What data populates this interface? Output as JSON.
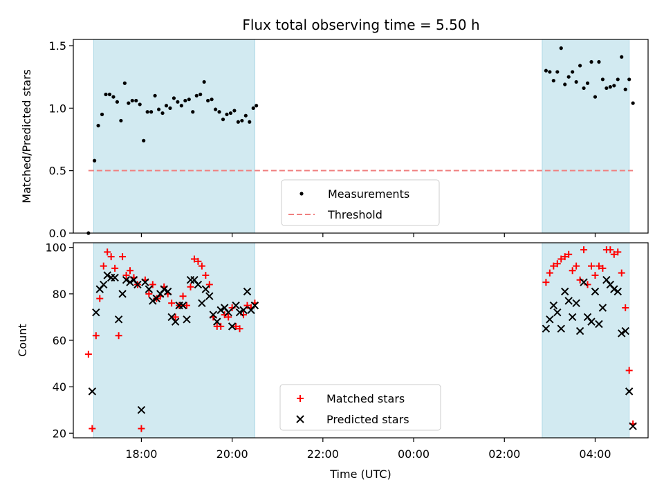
{
  "chart_data": [
    {
      "type": "scatter",
      "title": "Flux total observing time = 5.50 h",
      "ylabel": "Matched/Predicted stars",
      "xlabel": "",
      "ylim": [
        0,
        1.55
      ],
      "y_ticks": [
        0.0,
        0.5,
        1.0,
        1.5
      ],
      "y_tick_labels": [
        "0.0",
        "0.5",
        "1.0",
        "1.5"
      ],
      "shaded_intervals": [
        [
          "16:57",
          "20:30"
        ],
        [
          "02:50",
          "04:45"
        ]
      ],
      "threshold": 0.5,
      "legend": {
        "position": "lower center",
        "entries": [
          "Measurements",
          "Threshold"
        ]
      },
      "series": [
        {
          "name": "Measurements",
          "points": [
            [
              "16:50",
              0.0
            ],
            [
              "16:58",
              0.58
            ],
            [
              "17:03",
              0.86
            ],
            [
              "17:08",
              0.95
            ],
            [
              "17:13",
              1.11
            ],
            [
              "17:18",
              1.11
            ],
            [
              "17:23",
              1.09
            ],
            [
              "17:28",
              1.05
            ],
            [
              "17:33",
              0.9
            ],
            [
              "17:38",
              1.2
            ],
            [
              "17:43",
              1.04
            ],
            [
              "17:48",
              1.06
            ],
            [
              "17:53",
              1.06
            ],
            [
              "17:58",
              1.03
            ],
            [
              "18:03",
              0.74
            ],
            [
              "18:08",
              0.97
            ],
            [
              "18:13",
              0.97
            ],
            [
              "18:18",
              1.1
            ],
            [
              "18:23",
              0.99
            ],
            [
              "18:28",
              0.96
            ],
            [
              "18:33",
              1.02
            ],
            [
              "18:38",
              1.0
            ],
            [
              "18:43",
              1.08
            ],
            [
              "18:48",
              1.05
            ],
            [
              "18:53",
              1.02
            ],
            [
              "18:58",
              1.06
            ],
            [
              "19:03",
              1.07
            ],
            [
              "19:08",
              0.97
            ],
            [
              "19:13",
              1.1
            ],
            [
              "19:18",
              1.11
            ],
            [
              "19:23",
              1.21
            ],
            [
              "19:28",
              1.06
            ],
            [
              "19:33",
              1.07
            ],
            [
              "19:38",
              0.99
            ],
            [
              "19:43",
              0.97
            ],
            [
              "19:48",
              0.91
            ],
            [
              "19:53",
              0.95
            ],
            [
              "19:58",
              0.96
            ],
            [
              "20:03",
              0.98
            ],
            [
              "20:08",
              0.89
            ],
            [
              "20:13",
              0.9
            ],
            [
              "20:18",
              0.94
            ],
            [
              "20:23",
              0.89
            ],
            [
              "20:28",
              1.0
            ],
            [
              "20:32",
              1.02
            ],
            [
              "02:55",
              1.3
            ],
            [
              "03:00",
              1.29
            ],
            [
              "03:05",
              1.22
            ],
            [
              "03:10",
              1.29
            ],
            [
              "03:15",
              1.48
            ],
            [
              "03:20",
              1.19
            ],
            [
              "03:25",
              1.25
            ],
            [
              "03:30",
              1.29
            ],
            [
              "03:35",
              1.21
            ],
            [
              "03:40",
              1.34
            ],
            [
              "03:45",
              1.16
            ],
            [
              "03:50",
              1.2
            ],
            [
              "03:55",
              1.37
            ],
            [
              "04:00",
              1.09
            ],
            [
              "04:05",
              1.37
            ],
            [
              "04:10",
              1.23
            ],
            [
              "04:15",
              1.16
            ],
            [
              "04:20",
              1.17
            ],
            [
              "04:25",
              1.18
            ],
            [
              "04:30",
              1.23
            ],
            [
              "04:35",
              1.41
            ],
            [
              "04:40",
              1.15
            ],
            [
              "04:45",
              1.23
            ],
            [
              "04:50",
              1.04
            ]
          ]
        }
      ]
    },
    {
      "type": "scatter",
      "title": "",
      "ylabel": "Count",
      "xlabel": "Time (UTC)",
      "ylim": [
        18,
        102
      ],
      "y_ticks": [
        20,
        40,
        60,
        80,
        100
      ],
      "y_tick_labels": [
        "20",
        "40",
        "60",
        "80",
        "100"
      ],
      "x_ticks": [
        "18:00",
        "20:00",
        "22:00",
        "00:00",
        "02:00",
        "04:00"
      ],
      "shaded_intervals": [
        [
          "16:57",
          "20:30"
        ],
        [
          "02:50",
          "04:45"
        ]
      ],
      "legend": {
        "position": "lower center",
        "entries": [
          "Matched stars",
          "Predicted stars"
        ]
      },
      "series": [
        {
          "name": "Matched stars",
          "points": [
            [
              "16:50",
              54
            ],
            [
              "16:55",
              22
            ],
            [
              "17:00",
              62
            ],
            [
              "17:05",
              78
            ],
            [
              "17:10",
              92
            ],
            [
              "17:15",
              98
            ],
            [
              "17:20",
              96
            ],
            [
              "17:25",
              91
            ],
            [
              "17:30",
              62
            ],
            [
              "17:35",
              96
            ],
            [
              "17:40",
              88
            ],
            [
              "17:45",
              90
            ],
            [
              "17:50",
              87
            ],
            [
              "17:55",
              84
            ],
            [
              "18:00",
              22
            ],
            [
              "18:05",
              86
            ],
            [
              "18:10",
              80
            ],
            [
              "18:15",
              84
            ],
            [
              "18:20",
              78
            ],
            [
              "18:25",
              79
            ],
            [
              "18:30",
              83
            ],
            [
              "18:35",
              80
            ],
            [
              "18:40",
              76
            ],
            [
              "18:45",
              70
            ],
            [
              "18:50",
              75
            ],
            [
              "18:55",
              79
            ],
            [
              "19:00",
              75
            ],
            [
              "19:05",
              83
            ],
            [
              "19:10",
              95
            ],
            [
              "19:15",
              94
            ],
            [
              "19:20",
              92
            ],
            [
              "19:25",
              88
            ],
            [
              "19:30",
              84
            ],
            [
              "19:35",
              70
            ],
            [
              "19:40",
              66
            ],
            [
              "19:45",
              66
            ],
            [
              "19:50",
              71
            ],
            [
              "19:55",
              70
            ],
            [
              "20:00",
              74
            ],
            [
              "20:05",
              66
            ],
            [
              "20:10",
              65
            ],
            [
              "20:15",
              71
            ],
            [
              "20:20",
              75
            ],
            [
              "20:25",
              74
            ],
            [
              "20:30",
              76
            ],
            [
              "02:55",
              85
            ],
            [
              "03:00",
              89
            ],
            [
              "03:05",
              92
            ],
            [
              "03:10",
              93
            ],
            [
              "03:15",
              95
            ],
            [
              "03:20",
              96
            ],
            [
              "03:25",
              97
            ],
            [
              "03:30",
              90
            ],
            [
              "03:35",
              92
            ],
            [
              "03:40",
              86
            ],
            [
              "03:45",
              99
            ],
            [
              "03:50",
              84
            ],
            [
              "03:55",
              92
            ],
            [
              "04:00",
              88
            ],
            [
              "04:05",
              92
            ],
            [
              "04:10",
              91
            ],
            [
              "04:15",
              99
            ],
            [
              "04:20",
              99
            ],
            [
              "04:25",
              97
            ],
            [
              "04:30",
              98
            ],
            [
              "04:35",
              89
            ],
            [
              "04:40",
              74
            ],
            [
              "04:45",
              47
            ],
            [
              "04:50",
              24
            ]
          ]
        },
        {
          "name": "Predicted stars",
          "points": [
            [
              "16:55",
              38
            ],
            [
              "17:00",
              72
            ],
            [
              "17:05",
              82
            ],
            [
              "17:10",
              84
            ],
            [
              "17:15",
              88
            ],
            [
              "17:20",
              87
            ],
            [
              "17:25",
              87
            ],
            [
              "17:30",
              69
            ],
            [
              "17:35",
              80
            ],
            [
              "17:40",
              86
            ],
            [
              "17:45",
              85
            ],
            [
              "17:50",
              86
            ],
            [
              "17:55",
              84
            ],
            [
              "18:00",
              30
            ],
            [
              "18:05",
              85
            ],
            [
              "18:10",
              82
            ],
            [
              "18:15",
              77
            ],
            [
              "18:20",
              78
            ],
            [
              "18:25",
              80
            ],
            [
              "18:30",
              82
            ],
            [
              "18:35",
              81
            ],
            [
              "18:40",
              70
            ],
            [
              "18:45",
              68
            ],
            [
              "18:50",
              75
            ],
            [
              "18:55",
              75
            ],
            [
              "19:00",
              69
            ],
            [
              "19:05",
              86
            ],
            [
              "19:10",
              86
            ],
            [
              "19:15",
              84
            ],
            [
              "19:20",
              76
            ],
            [
              "19:25",
              82
            ],
            [
              "19:30",
              79
            ],
            [
              "19:35",
              71
            ],
            [
              "19:40",
              68
            ],
            [
              "19:45",
              73
            ],
            [
              "19:50",
              74
            ],
            [
              "19:55",
              72
            ],
            [
              "20:00",
              66
            ],
            [
              "20:05",
              75
            ],
            [
              "20:10",
              72
            ],
            [
              "20:15",
              73
            ],
            [
              "20:20",
              81
            ],
            [
              "20:25",
              73
            ],
            [
              "20:30",
              75
            ],
            [
              "02:55",
              65
            ],
            [
              "03:00",
              69
            ],
            [
              "03:05",
              75
            ],
            [
              "03:10",
              72
            ],
            [
              "03:15",
              65
            ],
            [
              "03:20",
              81
            ],
            [
              "03:25",
              77
            ],
            [
              "03:30",
              70
            ],
            [
              "03:35",
              76
            ],
            [
              "03:40",
              64
            ],
            [
              "03:45",
              85
            ],
            [
              "03:50",
              70
            ],
            [
              "03:55",
              68
            ],
            [
              "04:00",
              81
            ],
            [
              "04:05",
              67
            ],
            [
              "04:10",
              74
            ],
            [
              "04:15",
              86
            ],
            [
              "04:20",
              84
            ],
            [
              "04:25",
              82
            ],
            [
              "04:30",
              81
            ],
            [
              "04:35",
              63
            ],
            [
              "04:40",
              64
            ],
            [
              "04:45",
              38
            ],
            [
              "04:50",
              23
            ]
          ]
        }
      ]
    }
  ],
  "colors": {
    "shade": "#add8e6",
    "measurement": "#000000",
    "threshold": "#f08080",
    "matched": "#ff0000",
    "predicted": "#000000"
  }
}
